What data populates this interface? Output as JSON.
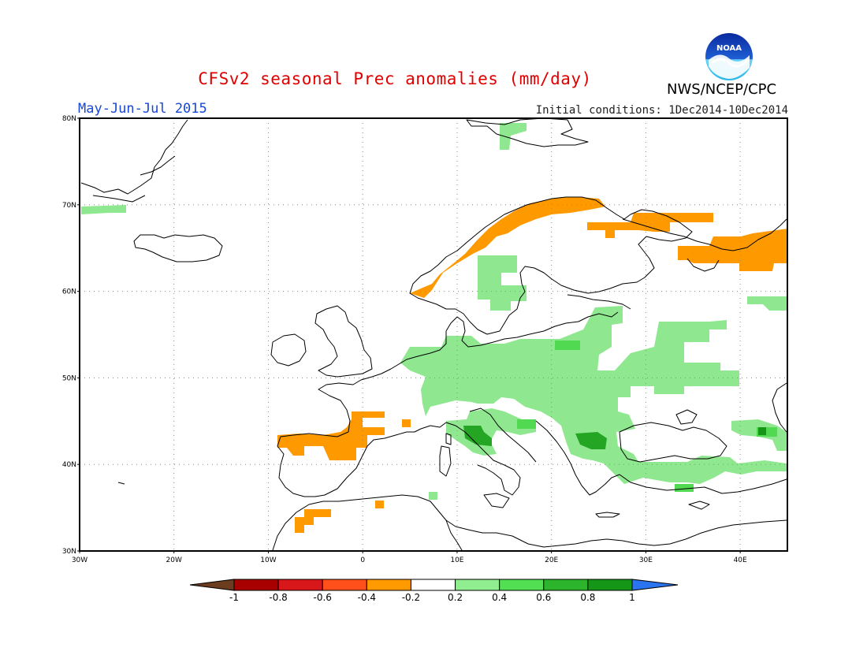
{
  "header": {
    "title": "CFSv2 seasonal Prec anomalies (mm/day)",
    "period": "May-Jun-Jul 2015",
    "initial_conditions": "Initial conditions: 1Dec2014-10Dec2014",
    "agency": "NWS/NCEP/CPC",
    "logo_text": "NOAA"
  },
  "map": {
    "region": "Europe",
    "lon_range": [
      -30,
      45
    ],
    "lat_range": [
      30,
      80
    ],
    "lat_labels": [
      "30N",
      "40N",
      "50N",
      "60N",
      "70N",
      "80N"
    ],
    "lon_labels": [
      "30W",
      "20W",
      "10W",
      "0",
      "10E",
      "20E",
      "30E",
      "40E"
    ]
  },
  "colorbar": {
    "labels": [
      "-1",
      "-0.8",
      "-0.6",
      "-0.4",
      "-0.2",
      "0.2",
      "0.4",
      "0.6",
      "0.8",
      "1"
    ],
    "colors": [
      "#6b3c1e",
      "#a80000",
      "#d8171b",
      "#ff4f1a",
      "#ff9a00",
      "#ffffff",
      "#90ee90",
      "#52e052",
      "#2cb42c",
      "#169616",
      "#2a74ef"
    ]
  },
  "colors": {
    "dry": "#ff9900",
    "wet_light": "#8fe88f",
    "wet_mid": "#52d952",
    "wet_dark": "#24a624",
    "coast": "#000000",
    "grid": "#8c8c8c"
  }
}
